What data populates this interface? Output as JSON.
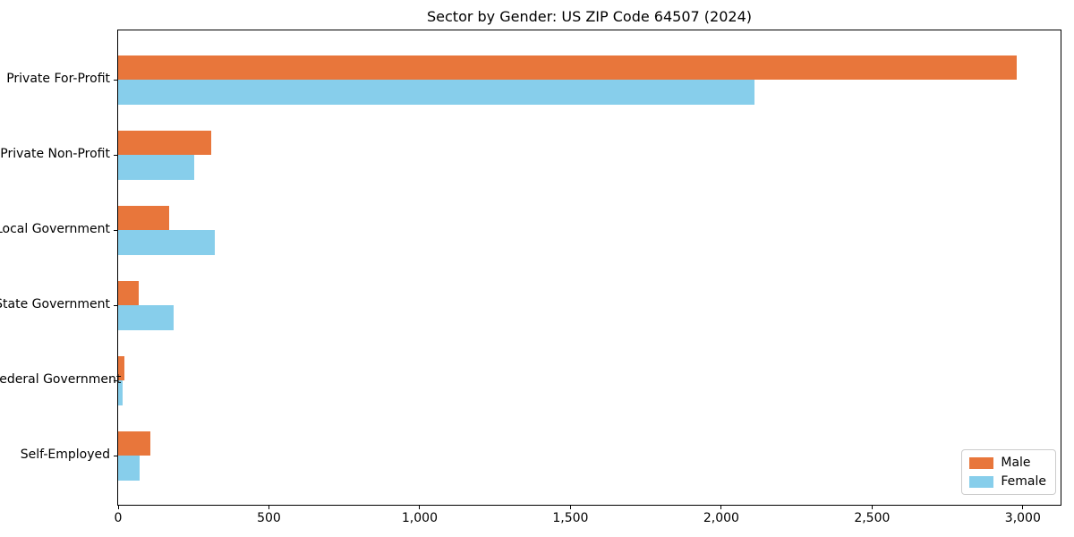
{
  "chart_data": {
    "type": "bar",
    "orientation": "horizontal",
    "title": "Sector by Gender: US ZIP Code 64507 (2024)",
    "categories": [
      "Private For-Profit",
      "Private Non-Profit",
      "Local Government",
      "State Government",
      "Federal Government",
      "Self-Employed"
    ],
    "series": [
      {
        "name": "Male",
        "color": "#E8763B",
        "values": [
          2980,
          310,
          168,
          67,
          21,
          108
        ]
      },
      {
        "name": "Female",
        "color": "#87CEEB",
        "values": [
          2110,
          253,
          320,
          185,
          16,
          70
        ]
      }
    ],
    "xlabel": "",
    "ylabel": "",
    "xlim": [
      0,
      3131
    ],
    "xticks": [
      0,
      500,
      1000,
      1500,
      2000,
      2500,
      3000
    ],
    "xtick_labels": [
      "0",
      "500",
      "1,000",
      "1,500",
      "2,000",
      "2,500",
      "3,000"
    ],
    "grid": false,
    "legend": {
      "position": "lower right",
      "entries": [
        "Male",
        "Female"
      ]
    },
    "colors": {
      "male": "#E8763B",
      "female": "#87CEEB",
      "frame": "#000000",
      "legend_border": "#cccccc"
    }
  }
}
